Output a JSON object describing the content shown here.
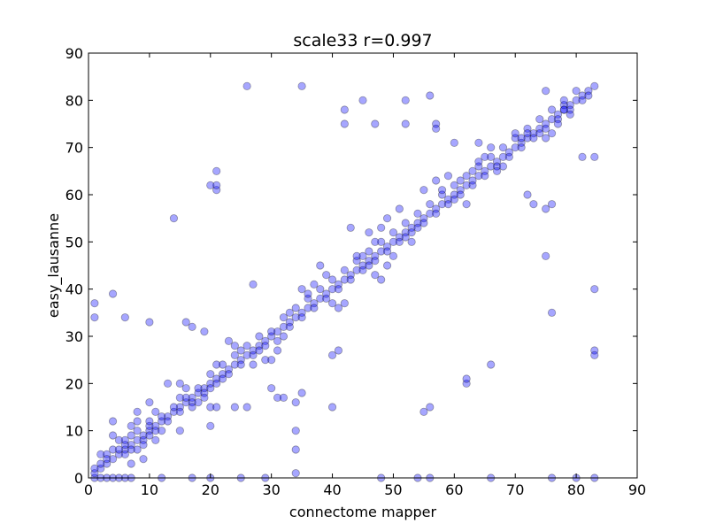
{
  "chart_data": {
    "type": "scatter",
    "title": "scale33 r=0.997",
    "xlabel": "connectome mapper",
    "ylabel": "easy_lausanne",
    "xlim": [
      0,
      90
    ],
    "ylim": [
      0,
      90
    ],
    "xticks": [
      "0",
      "10",
      "20",
      "30",
      "40",
      "50",
      "60",
      "70",
      "80",
      "90"
    ],
    "yticks": [
      "0",
      "10",
      "20",
      "30",
      "40",
      "50",
      "60",
      "70",
      "80",
      "90"
    ],
    "grid": false,
    "legend": "none",
    "marker_color": "#0000ff",
    "points": [
      [
        1,
        0
      ],
      [
        2,
        0
      ],
      [
        3,
        0
      ],
      [
        4,
        0
      ],
      [
        5,
        0
      ],
      [
        6,
        0
      ],
      [
        7,
        0
      ],
      [
        12,
        0
      ],
      [
        17,
        0
      ],
      [
        20,
        0
      ],
      [
        25,
        0
      ],
      [
        29,
        0
      ],
      [
        34,
        1
      ],
      [
        48,
        0
      ],
      [
        54,
        0
      ],
      [
        56,
        0
      ],
      [
        66,
        0
      ],
      [
        76,
        0
      ],
      [
        80,
        0
      ],
      [
        83,
        0
      ],
      [
        1,
        1
      ],
      [
        2,
        2
      ],
      [
        3,
        3
      ],
      [
        4,
        4
      ],
      [
        5,
        5
      ],
      [
        6,
        6
      ],
      [
        7,
        7
      ],
      [
        8,
        8
      ],
      [
        9,
        9
      ],
      [
        10,
        10
      ],
      [
        11,
        11
      ],
      [
        12,
        12
      ],
      [
        13,
        13
      ],
      [
        14,
        14
      ],
      [
        15,
        15
      ],
      [
        16,
        16
      ],
      [
        17,
        17
      ],
      [
        18,
        18
      ],
      [
        19,
        19
      ],
      [
        20,
        20
      ],
      [
        21,
        21
      ],
      [
        22,
        22
      ],
      [
        23,
        23
      ],
      [
        24,
        24
      ],
      [
        25,
        25
      ],
      [
        26,
        26
      ],
      [
        27,
        27
      ],
      [
        28,
        28
      ],
      [
        29,
        29
      ],
      [
        30,
        30
      ],
      [
        31,
        31
      ],
      [
        32,
        32
      ],
      [
        33,
        33
      ],
      [
        34,
        34
      ],
      [
        35,
        35
      ],
      [
        36,
        36
      ],
      [
        37,
        37
      ],
      [
        38,
        38
      ],
      [
        39,
        39
      ],
      [
        40,
        40
      ],
      [
        41,
        41
      ],
      [
        42,
        42
      ],
      [
        43,
        43
      ],
      [
        44,
        44
      ],
      [
        45,
        45
      ],
      [
        46,
        46
      ],
      [
        47,
        47
      ],
      [
        48,
        48
      ],
      [
        49,
        49
      ],
      [
        50,
        50
      ],
      [
        51,
        51
      ],
      [
        52,
        52
      ],
      [
        53,
        53
      ],
      [
        54,
        54
      ],
      [
        55,
        55
      ],
      [
        56,
        56
      ],
      [
        57,
        57
      ],
      [
        58,
        58
      ],
      [
        59,
        59
      ],
      [
        60,
        60
      ],
      [
        61,
        61
      ],
      [
        62,
        62
      ],
      [
        63,
        63
      ],
      [
        64,
        64
      ],
      [
        65,
        65
      ],
      [
        66,
        66
      ],
      [
        67,
        67
      ],
      [
        68,
        68
      ],
      [
        69,
        69
      ],
      [
        70,
        70
      ],
      [
        71,
        71
      ],
      [
        72,
        72
      ],
      [
        73,
        73
      ],
      [
        74,
        74
      ],
      [
        75,
        75
      ],
      [
        76,
        76
      ],
      [
        77,
        77
      ],
      [
        78,
        78
      ],
      [
        79,
        79
      ],
      [
        80,
        80
      ],
      [
        81,
        81
      ],
      [
        82,
        82
      ],
      [
        83,
        83
      ],
      [
        1,
        37
      ],
      [
        1,
        34
      ],
      [
        4,
        39
      ],
      [
        6,
        34
      ],
      [
        10,
        33
      ],
      [
        14,
        55
      ],
      [
        16,
        33
      ],
      [
        17,
        32
      ],
      [
        19,
        31
      ],
      [
        21,
        61
      ],
      [
        21,
        62
      ],
      [
        21,
        65
      ],
      [
        20,
        62
      ],
      [
        26,
        83
      ],
      [
        27,
        41
      ],
      [
        35,
        83
      ],
      [
        42,
        75
      ],
      [
        42,
        78
      ],
      [
        45,
        80
      ],
      [
        47,
        75
      ],
      [
        52,
        80
      ],
      [
        52,
        75
      ],
      [
        56,
        81
      ],
      [
        57,
        75
      ],
      [
        57,
        74
      ],
      [
        60,
        71
      ],
      [
        64,
        71
      ],
      [
        75,
        82
      ],
      [
        78,
        79
      ],
      [
        78,
        78
      ],
      [
        81,
        68
      ],
      [
        83,
        68
      ],
      [
        76,
        58
      ],
      [
        72,
        60
      ],
      [
        73,
        58
      ],
      [
        75,
        57
      ],
      [
        75,
        47
      ],
      [
        76,
        35
      ],
      [
        83,
        40
      ],
      [
        83,
        27
      ],
      [
        83,
        26
      ],
      [
        62,
        20
      ],
      [
        62,
        21
      ],
      [
        66,
        24
      ],
      [
        55,
        14
      ],
      [
        56,
        15
      ],
      [
        40,
        26
      ],
      [
        41,
        27
      ],
      [
        40,
        15
      ],
      [
        34,
        16
      ],
      [
        35,
        18
      ],
      [
        34,
        10
      ],
      [
        34,
        6
      ],
      [
        30,
        19
      ],
      [
        31,
        17
      ],
      [
        32,
        17
      ],
      [
        24,
        15
      ],
      [
        26,
        15
      ],
      [
        20,
        11
      ],
      [
        15,
        10
      ],
      [
        20,
        15
      ],
      [
        21,
        15
      ],
      [
        13,
        20
      ],
      [
        15,
        20
      ],
      [
        4,
        12
      ],
      [
        4,
        9
      ],
      [
        5,
        8
      ],
      [
        6,
        7
      ],
      [
        7,
        9
      ],
      [
        8,
        12
      ],
      [
        8,
        14
      ],
      [
        10,
        16
      ],
      [
        9,
        4
      ],
      [
        7,
        3
      ],
      [
        10,
        9
      ],
      [
        11,
        14
      ],
      [
        2,
        5
      ],
      [
        3,
        5
      ],
      [
        4,
        6
      ],
      [
        5,
        6
      ],
      [
        6,
        8
      ],
      [
        7,
        6
      ],
      [
        8,
        10
      ],
      [
        9,
        8
      ],
      [
        10,
        11
      ],
      [
        11,
        10
      ],
      [
        12,
        13
      ],
      [
        13,
        12
      ],
      [
        14,
        15
      ],
      [
        15,
        14
      ],
      [
        16,
        17
      ],
      [
        17,
        16
      ],
      [
        18,
        19
      ],
      [
        19,
        18
      ],
      [
        20,
        22
      ],
      [
        21,
        20
      ],
      [
        22,
        24
      ],
      [
        23,
        22
      ],
      [
        24,
        26
      ],
      [
        25,
        24
      ],
      [
        26,
        28
      ],
      [
        27,
        26
      ],
      [
        28,
        30
      ],
      [
        29,
        28
      ],
      [
        30,
        31
      ],
      [
        31,
        29
      ],
      [
        32,
        34
      ],
      [
        33,
        32
      ],
      [
        34,
        36
      ],
      [
        35,
        34
      ],
      [
        36,
        38
      ],
      [
        37,
        36
      ],
      [
        38,
        40
      ],
      [
        39,
        38
      ],
      [
        40,
        42
      ],
      [
        41,
        40
      ],
      [
        42,
        44
      ],
      [
        43,
        42
      ],
      [
        44,
        46
      ],
      [
        45,
        44
      ],
      [
        46,
        48
      ],
      [
        47,
        46
      ],
      [
        48,
        50
      ],
      [
        49,
        48
      ],
      [
        50,
        52
      ],
      [
        51,
        50
      ],
      [
        52,
        54
      ],
      [
        53,
        52
      ],
      [
        54,
        56
      ],
      [
        55,
        54
      ],
      [
        56,
        58
      ],
      [
        57,
        56
      ],
      [
        58,
        60
      ],
      [
        59,
        58
      ],
      [
        60,
        62
      ],
      [
        61,
        60
      ],
      [
        62,
        64
      ],
      [
        63,
        62
      ],
      [
        64,
        66
      ],
      [
        65,
        64
      ],
      [
        66,
        68
      ],
      [
        67,
        66
      ],
      [
        68,
        70
      ],
      [
        69,
        68
      ],
      [
        70,
        72
      ],
      [
        71,
        70
      ],
      [
        72,
        74
      ],
      [
        73,
        72
      ],
      [
        74,
        76
      ],
      [
        75,
        74
      ],
      [
        76,
        78
      ],
      [
        77,
        76
      ],
      [
        78,
        80
      ],
      [
        79,
        78
      ],
      [
        80,
        82
      ],
      [
        81,
        80
      ],
      [
        43,
        53
      ],
      [
        49,
        55
      ],
      [
        51,
        57
      ],
      [
        52,
        51
      ],
      [
        55,
        61
      ],
      [
        53,
        50
      ],
      [
        54,
        53
      ],
      [
        57,
        63
      ],
      [
        58,
        61
      ],
      [
        59,
        64
      ],
      [
        60,
        59
      ],
      [
        61,
        63
      ],
      [
        62,
        58
      ],
      [
        63,
        65
      ],
      [
        64,
        67
      ],
      [
        65,
        68
      ],
      [
        66,
        70
      ],
      [
        67,
        65
      ],
      [
        68,
        66
      ],
      [
        70,
        73
      ],
      [
        71,
        72
      ],
      [
        72,
        73
      ],
      [
        74,
        73
      ],
      [
        75,
        72
      ],
      [
        76,
        73
      ],
      [
        77,
        75
      ],
      [
        79,
        77
      ],
      [
        82,
        81
      ],
      [
        44,
        47
      ],
      [
        45,
        47
      ],
      [
        46,
        45
      ],
      [
        47,
        43
      ],
      [
        48,
        42
      ],
      [
        46,
        52
      ],
      [
        47,
        50
      ],
      [
        48,
        53
      ],
      [
        49,
        45
      ],
      [
        50,
        47
      ],
      [
        38,
        45
      ],
      [
        39,
        43
      ],
      [
        40,
        37
      ],
      [
        41,
        36
      ],
      [
        42,
        37
      ],
      [
        36,
        39
      ],
      [
        37,
        41
      ],
      [
        35,
        40
      ],
      [
        33,
        35
      ],
      [
        32,
        30
      ],
      [
        31,
        27
      ],
      [
        30,
        25
      ],
      [
        29,
        25
      ],
      [
        27,
        24
      ],
      [
        28,
        27
      ],
      [
        25,
        27
      ],
      [
        24,
        28
      ],
      [
        23,
        29
      ],
      [
        22,
        21
      ],
      [
        21,
        24
      ],
      [
        20,
        19
      ],
      [
        19,
        17
      ],
      [
        18,
        16
      ],
      [
        17,
        15
      ],
      [
        16,
        19
      ],
      [
        15,
        17
      ],
      [
        12,
        10
      ],
      [
        11,
        8
      ],
      [
        9,
        7
      ],
      [
        8,
        6
      ],
      [
        10,
        12
      ],
      [
        7,
        11
      ],
      [
        6,
        5
      ],
      [
        3,
        4
      ],
      [
        2,
        3
      ],
      [
        1,
        2
      ]
    ]
  }
}
